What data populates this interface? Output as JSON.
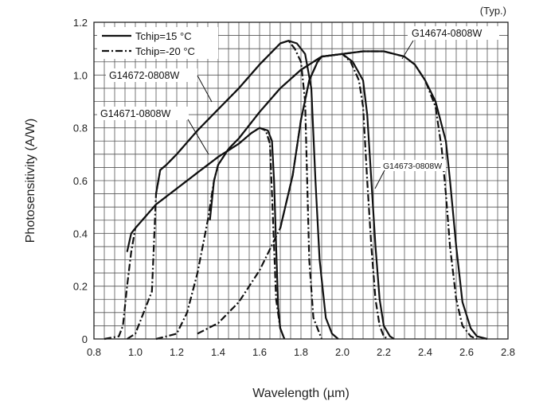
{
  "chart_data": {
    "type": "line",
    "title": "",
    "corner_note": "(Typ.)",
    "xlabel": "Wavelength (µm)",
    "ylabel": "Photosensitivity (A/W)",
    "xlim": [
      0.8,
      2.8
    ],
    "ylim": [
      0,
      1.2
    ],
    "grid": true,
    "x_ticks": [
      "0.8",
      "1.0",
      "1.2",
      "1.4",
      "1.6",
      "1.8",
      "2.0",
      "2.2",
      "2.4",
      "2.6",
      "2.8"
    ],
    "y_ticks": [
      "0",
      "0.2",
      "0.4",
      "0.6",
      "0.8",
      "1.0",
      "1.2"
    ],
    "legend": {
      "position": "top-left",
      "entries": [
        {
          "label": "Tchip=15 °C",
          "style": "solid"
        },
        {
          "label": "Tchip=-20 °C",
          "style": "dash-dot"
        }
      ]
    },
    "series": [
      {
        "name": "G14671-0808W",
        "condition": "Tchip=15 °C",
        "style": "solid",
        "points": [
          [
            0.96,
            0.33
          ],
          [
            0.98,
            0.4
          ],
          [
            1.0,
            0.42
          ],
          [
            1.1,
            0.51
          ],
          [
            1.2,
            0.57
          ],
          [
            1.3,
            0.63
          ],
          [
            1.4,
            0.69
          ],
          [
            1.5,
            0.74
          ],
          [
            1.56,
            0.78
          ],
          [
            1.6,
            0.8
          ],
          [
            1.64,
            0.79
          ],
          [
            1.66,
            0.75
          ],
          [
            1.67,
            0.6
          ],
          [
            1.68,
            0.35
          ],
          [
            1.69,
            0.12
          ],
          [
            1.7,
            0.04
          ],
          [
            1.72,
            0.0
          ]
        ]
      },
      {
        "name": "G14671-0808W",
        "condition": "Tchip=-20 °C",
        "style": "dash-dot",
        "points": [
          [
            0.85,
            0.0
          ],
          [
            0.92,
            0.01
          ],
          [
            0.94,
            0.05
          ],
          [
            0.96,
            0.2
          ],
          [
            0.98,
            0.33
          ],
          [
            1.0,
            0.42
          ],
          [
            1.1,
            0.51
          ],
          [
            1.2,
            0.57
          ],
          [
            1.3,
            0.63
          ],
          [
            1.4,
            0.69
          ],
          [
            1.5,
            0.74
          ],
          [
            1.56,
            0.78
          ],
          [
            1.6,
            0.8
          ],
          [
            1.63,
            0.79
          ],
          [
            1.65,
            0.74
          ],
          [
            1.66,
            0.55
          ],
          [
            1.67,
            0.35
          ],
          [
            1.68,
            0.15
          ],
          [
            1.7,
            0.04
          ],
          [
            1.72,
            0.0
          ]
        ]
      },
      {
        "name": "G14672-0808W",
        "condition": "Tchip=15 °C",
        "style": "solid",
        "points": [
          [
            1.1,
            0.55
          ],
          [
            1.12,
            0.64
          ],
          [
            1.15,
            0.66
          ],
          [
            1.2,
            0.7
          ],
          [
            1.3,
            0.79
          ],
          [
            1.4,
            0.87
          ],
          [
            1.5,
            0.95
          ],
          [
            1.6,
            1.04
          ],
          [
            1.7,
            1.12
          ],
          [
            1.74,
            1.13
          ],
          [
            1.78,
            1.12
          ],
          [
            1.82,
            1.08
          ],
          [
            1.85,
            0.95
          ],
          [
            1.87,
            0.6
          ],
          [
            1.89,
            0.3
          ],
          [
            1.92,
            0.08
          ],
          [
            1.95,
            0.02
          ],
          [
            1.98,
            0.0
          ]
        ]
      },
      {
        "name": "G14672-0808W",
        "condition": "Tchip=-20 °C",
        "style": "dash-dot",
        "points": [
          [
            0.96,
            0.0
          ],
          [
            1.0,
            0.02
          ],
          [
            1.04,
            0.1
          ],
          [
            1.08,
            0.18
          ],
          [
            1.1,
            0.55
          ],
          [
            1.12,
            0.64
          ],
          [
            1.15,
            0.66
          ],
          [
            1.2,
            0.7
          ],
          [
            1.3,
            0.79
          ],
          [
            1.4,
            0.87
          ],
          [
            1.5,
            0.95
          ],
          [
            1.6,
            1.04
          ],
          [
            1.7,
            1.12
          ],
          [
            1.74,
            1.13
          ],
          [
            1.77,
            1.1
          ],
          [
            1.8,
            1.05
          ],
          [
            1.82,
            0.9
          ],
          [
            1.83,
            0.6
          ],
          [
            1.84,
            0.3
          ],
          [
            1.86,
            0.08
          ],
          [
            1.9,
            0.0
          ]
        ]
      },
      {
        "name": "G14673-0808W",
        "condition": "Tchip=15 °C",
        "style": "solid",
        "points": [
          [
            1.36,
            0.45
          ],
          [
            1.38,
            0.6
          ],
          [
            1.4,
            0.66
          ],
          [
            1.45,
            0.72
          ],
          [
            1.5,
            0.76
          ],
          [
            1.6,
            0.86
          ],
          [
            1.7,
            0.95
          ],
          [
            1.8,
            1.02
          ],
          [
            1.9,
            1.07
          ],
          [
            2.0,
            1.08
          ],
          [
            2.05,
            1.05
          ],
          [
            2.1,
            0.98
          ],
          [
            2.12,
            0.85
          ],
          [
            2.14,
            0.6
          ],
          [
            2.16,
            0.35
          ],
          [
            2.18,
            0.15
          ],
          [
            2.2,
            0.05
          ],
          [
            2.23,
            0.01
          ],
          [
            2.25,
            0.0
          ]
        ]
      },
      {
        "name": "G14673-0808W",
        "condition": "Tchip=-20 °C",
        "style": "dash-dot",
        "points": [
          [
            1.1,
            0.0
          ],
          [
            1.2,
            0.02
          ],
          [
            1.25,
            0.1
          ],
          [
            1.3,
            0.25
          ],
          [
            1.35,
            0.45
          ],
          [
            1.38,
            0.6
          ],
          [
            1.4,
            0.66
          ],
          [
            1.45,
            0.72
          ],
          [
            1.5,
            0.76
          ],
          [
            1.6,
            0.86
          ],
          [
            1.7,
            0.95
          ],
          [
            1.8,
            1.02
          ],
          [
            1.9,
            1.07
          ],
          [
            2.0,
            1.08
          ],
          [
            2.04,
            1.05
          ],
          [
            2.08,
            0.98
          ],
          [
            2.1,
            0.88
          ],
          [
            2.12,
            0.6
          ],
          [
            2.14,
            0.35
          ],
          [
            2.16,
            0.15
          ],
          [
            2.18,
            0.05
          ],
          [
            2.2,
            0.01
          ],
          [
            2.22,
            0.0
          ]
        ]
      },
      {
        "name": "G14674-0808W",
        "condition": "Tchip=15 °C",
        "style": "solid",
        "points": [
          [
            1.7,
            0.42
          ],
          [
            1.76,
            0.62
          ],
          [
            1.8,
            0.83
          ],
          [
            1.84,
            0.98
          ],
          [
            1.88,
            1.05
          ],
          [
            1.9,
            1.07
          ],
          [
            2.0,
            1.08
          ],
          [
            2.1,
            1.09
          ],
          [
            2.2,
            1.09
          ],
          [
            2.3,
            1.07
          ],
          [
            2.35,
            1.04
          ],
          [
            2.4,
            0.98
          ],
          [
            2.45,
            0.9
          ],
          [
            2.5,
            0.75
          ],
          [
            2.52,
            0.6
          ],
          [
            2.55,
            0.35
          ],
          [
            2.58,
            0.14
          ],
          [
            2.62,
            0.04
          ],
          [
            2.65,
            0.01
          ],
          [
            2.7,
            0.0
          ]
        ]
      },
      {
        "name": "G14674-0808W",
        "condition": "Tchip=-20 °C",
        "style": "dash-dot",
        "points": [
          [
            1.3,
            0.02
          ],
          [
            1.4,
            0.06
          ],
          [
            1.5,
            0.14
          ],
          [
            1.6,
            0.26
          ],
          [
            1.7,
            0.42
          ],
          [
            1.76,
            0.62
          ],
          [
            1.8,
            0.83
          ],
          [
            1.84,
            0.98
          ],
          [
            1.88,
            1.05
          ],
          [
            1.9,
            1.07
          ],
          [
            2.0,
            1.08
          ],
          [
            2.1,
            1.09
          ],
          [
            2.2,
            1.09
          ],
          [
            2.3,
            1.07
          ],
          [
            2.35,
            1.04
          ],
          [
            2.4,
            0.98
          ],
          [
            2.45,
            0.88
          ],
          [
            2.48,
            0.72
          ],
          [
            2.5,
            0.55
          ],
          [
            2.52,
            0.35
          ],
          [
            2.55,
            0.15
          ],
          [
            2.58,
            0.05
          ],
          [
            2.62,
            0.01
          ],
          [
            2.65,
            0.0
          ]
        ]
      }
    ],
    "callouts": [
      {
        "text": "G14674-0808W",
        "at": [
          2.36,
          1.06
        ]
      },
      {
        "text": "G14672-0808W",
        "at": [
          1.37,
          0.9
        ]
      },
      {
        "text": "G14671-0808W",
        "at": [
          1.34,
          0.68
        ]
      },
      {
        "text": "G14673-0808W",
        "at": [
          2.15,
          0.55
        ]
      }
    ]
  }
}
